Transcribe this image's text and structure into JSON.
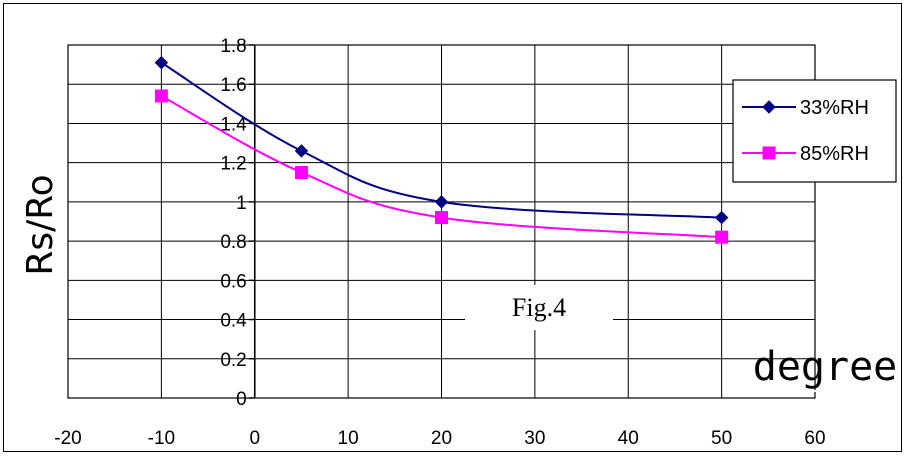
{
  "chart_data": {
    "type": "line",
    "title": "",
    "annotation": "Fig.4",
    "xlabel": "degree",
    "ylabel": "Rs/Ro",
    "xlim": [
      -20,
      60
    ],
    "ylim": [
      0,
      1.8
    ],
    "xticks": [
      "-20",
      "-10",
      "0",
      "10",
      "20",
      "30",
      "40",
      "50",
      "60"
    ],
    "yticks": [
      "0",
      "0.2",
      "0.4",
      "0.6",
      "0.8",
      "1",
      "1.2",
      "1.4",
      "1.6",
      "1.8"
    ],
    "grid": true,
    "legend_position": "right",
    "series": [
      {
        "name": "33%RH",
        "color": "#000080",
        "marker": "diamond",
        "x": [
          -10,
          5,
          20,
          50
        ],
        "y": [
          1.71,
          1.26,
          1.0,
          0.92
        ]
      },
      {
        "name": "85%RH",
        "color": "#ff00ff",
        "marker": "square",
        "x": [
          -10,
          5,
          20,
          50
        ],
        "y": [
          1.54,
          1.15,
          0.92,
          0.82
        ]
      }
    ]
  }
}
